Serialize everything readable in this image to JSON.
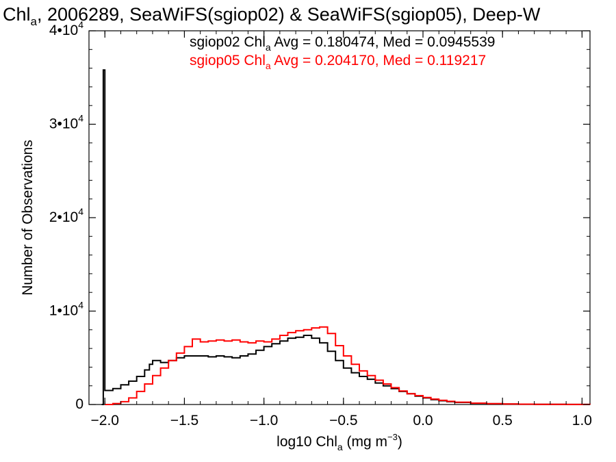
{
  "chart_data": {
    "type": "line",
    "title": {
      "main": "Chl",
      "sub": "a",
      "rest": ", 2006289, SeaWiFS(sgiop02) & SeaWiFS(sgiop05), Deep-W"
    },
    "xlabel": {
      "main": "log10 Chl",
      "sub": "a",
      "unit": " (mg m",
      "sup": "-3",
      "close": ")"
    },
    "ylabel": "Number of Observations",
    "xlim": [
      -2.1,
      1.05
    ],
    "ylim": [
      0,
      40000
    ],
    "x_ticks": [
      {
        "value": -2.0,
        "label": "-2.0"
      },
      {
        "value": -1.5,
        "label": "-1.5"
      },
      {
        "value": -1.0,
        "label": "-1.0"
      },
      {
        "value": -0.5,
        "label": "-0.5"
      },
      {
        "value": 0.0,
        "label": "0.0"
      },
      {
        "value": 0.5,
        "label": "0.5"
      },
      {
        "value": 1.0,
        "label": "1.0"
      }
    ],
    "y_ticks": [
      {
        "value": 0,
        "label": "0",
        "sup": ""
      },
      {
        "value": 10000,
        "label": "1•10",
        "sup": "4"
      },
      {
        "value": 20000,
        "label": "2•10",
        "sup": "4"
      },
      {
        "value": 30000,
        "label": "3•10",
        "sup": "4"
      },
      {
        "value": 40000,
        "label": "4•10",
        "sup": "4"
      }
    ],
    "step": true,
    "grid": false,
    "legend_position": "top-right",
    "series": [
      {
        "name": "sgiop02",
        "color": "#000000",
        "legend": {
          "pre": "sgiop02 Chl",
          "sub": "a",
          "post": " Avg = 0.180474, Med = 0.0945539"
        },
        "points": [
          [
            -2.02,
            0
          ],
          [
            -2.01,
            35800
          ],
          [
            -2.0,
            1500
          ],
          [
            -1.95,
            1700
          ],
          [
            -1.9,
            2100
          ],
          [
            -1.85,
            2500
          ],
          [
            -1.8,
            3000
          ],
          [
            -1.75,
            3700
          ],
          [
            -1.72,
            4300
          ],
          [
            -1.7,
            4700
          ],
          [
            -1.65,
            4500
          ],
          [
            -1.6,
            4700
          ],
          [
            -1.55,
            5000
          ],
          [
            -1.5,
            5200
          ],
          [
            -1.45,
            5200
          ],
          [
            -1.4,
            5200
          ],
          [
            -1.35,
            5100
          ],
          [
            -1.3,
            5200
          ],
          [
            -1.25,
            5100
          ],
          [
            -1.2,
            5000
          ],
          [
            -1.15,
            5200
          ],
          [
            -1.1,
            5400
          ],
          [
            -1.05,
            5800
          ],
          [
            -1.0,
            6200
          ],
          [
            -0.95,
            6500
          ],
          [
            -0.9,
            6800
          ],
          [
            -0.85,
            7100
          ],
          [
            -0.8,
            7200
          ],
          [
            -0.75,
            7400
          ],
          [
            -0.7,
            7100
          ],
          [
            -0.65,
            6600
          ],
          [
            -0.6,
            5700
          ],
          [
            -0.55,
            4700
          ],
          [
            -0.5,
            3900
          ],
          [
            -0.45,
            3400
          ],
          [
            -0.4,
            3000
          ],
          [
            -0.35,
            2700
          ],
          [
            -0.3,
            2300
          ],
          [
            -0.25,
            2000
          ],
          [
            -0.2,
            1700
          ],
          [
            -0.15,
            1400
          ],
          [
            -0.1,
            1150
          ],
          [
            -0.05,
            900
          ],
          [
            0.0,
            700
          ],
          [
            0.05,
            520
          ],
          [
            0.1,
            400
          ],
          [
            0.15,
            300
          ],
          [
            0.2,
            220
          ],
          [
            0.3,
            130
          ],
          [
            0.4,
            80
          ],
          [
            0.5,
            50
          ],
          [
            0.6,
            30
          ],
          [
            0.7,
            20
          ],
          [
            0.8,
            15
          ],
          [
            0.9,
            10
          ],
          [
            1.0,
            5
          ],
          [
            1.05,
            0
          ]
        ]
      },
      {
        "name": "sgiop05",
        "color": "#ff0000",
        "legend": {
          "pre": "sgiop05 Chl",
          "sub": "a",
          "post": " Avg = 0.204170, Med = 0.119217"
        },
        "points": [
          [
            -2.0,
            0
          ],
          [
            -1.95,
            100
          ],
          [
            -1.9,
            300
          ],
          [
            -1.85,
            700
          ],
          [
            -1.8,
            1400
          ],
          [
            -1.75,
            2200
          ],
          [
            -1.7,
            3100
          ],
          [
            -1.65,
            3900
          ],
          [
            -1.6,
            4700
          ],
          [
            -1.55,
            5500
          ],
          [
            -1.5,
            6200
          ],
          [
            -1.45,
            7000
          ],
          [
            -1.4,
            6700
          ],
          [
            -1.35,
            6800
          ],
          [
            -1.3,
            6900
          ],
          [
            -1.25,
            6800
          ],
          [
            -1.2,
            6900
          ],
          [
            -1.15,
            6700
          ],
          [
            -1.1,
            6600
          ],
          [
            -1.05,
            6800
          ],
          [
            -1.0,
            6700
          ],
          [
            -0.95,
            7000
          ],
          [
            -0.9,
            7400
          ],
          [
            -0.85,
            7700
          ],
          [
            -0.8,
            7900
          ],
          [
            -0.75,
            8000
          ],
          [
            -0.7,
            8200
          ],
          [
            -0.65,
            8300
          ],
          [
            -0.6,
            7600
          ],
          [
            -0.55,
            6300
          ],
          [
            -0.5,
            5200
          ],
          [
            -0.45,
            4300
          ],
          [
            -0.4,
            3600
          ],
          [
            -0.35,
            3100
          ],
          [
            -0.3,
            2600
          ],
          [
            -0.25,
            2200
          ],
          [
            -0.2,
            1800
          ],
          [
            -0.15,
            1450
          ],
          [
            -0.1,
            1150
          ],
          [
            -0.05,
            950
          ],
          [
            0.0,
            750
          ],
          [
            0.05,
            580
          ],
          [
            0.1,
            450
          ],
          [
            0.15,
            340
          ],
          [
            0.2,
            250
          ],
          [
            0.3,
            150
          ],
          [
            0.4,
            90
          ],
          [
            0.5,
            55
          ],
          [
            0.6,
            35
          ],
          [
            0.7,
            22
          ],
          [
            0.8,
            14
          ],
          [
            0.9,
            8
          ],
          [
            1.0,
            4
          ],
          [
            1.05,
            0
          ]
        ]
      }
    ]
  }
}
